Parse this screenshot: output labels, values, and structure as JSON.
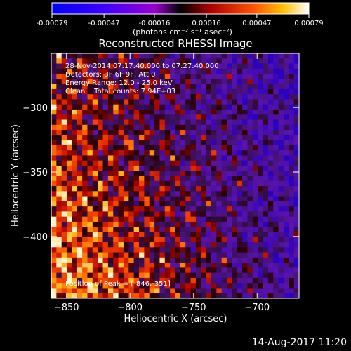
{
  "colorbar": {
    "ticks": [
      "-0.00079",
      "-0.00047",
      "-0.00016",
      "0.00016",
      "0.00047",
      "0.00079"
    ],
    "tick_values": [
      -0.00079,
      -0.00047,
      -0.00016,
      0.00016,
      0.00047,
      0.00079
    ],
    "units": "(photons cm⁻² s⁻¹ asec⁻²)",
    "range": [
      -0.00079,
      0.00079
    ]
  },
  "chart_data": {
    "type": "heatmap",
    "title": "Reconstructed RHESSI Image",
    "xlabel": "Heliocentric X (arcsec)",
    "ylabel": "Heliocentric Y (arcsec)",
    "xlim": [
      -862,
      -667
    ],
    "ylim": [
      -448,
      -258
    ],
    "xticks": [
      -850,
      -800,
      -750,
      -700
    ],
    "xtick_labels": [
      "−850",
      "−800",
      "−750",
      "−700"
    ],
    "yticks": [
      -300,
      -350,
      -400
    ],
    "ytick_labels": [
      "−300",
      "−350",
      "−400"
    ],
    "colorscale": "rainbow-hot diverging",
    "peak": [
      -846,
      -351
    ],
    "annotations": {
      "time": "28-Nov-2014 07:17:40.000 to 07:27:40.000",
      "detectors": "Detectors: 3F 6F 9F, Att 0",
      "energy": "Energy Range: 12.0 - 25.0 keV",
      "clean": "Clean    Total counts: 7.94E+03",
      "peak_label": "Position of Peak = [-846,-351]"
    }
  },
  "footer": {
    "date": "14-Aug-2017 11:20"
  }
}
